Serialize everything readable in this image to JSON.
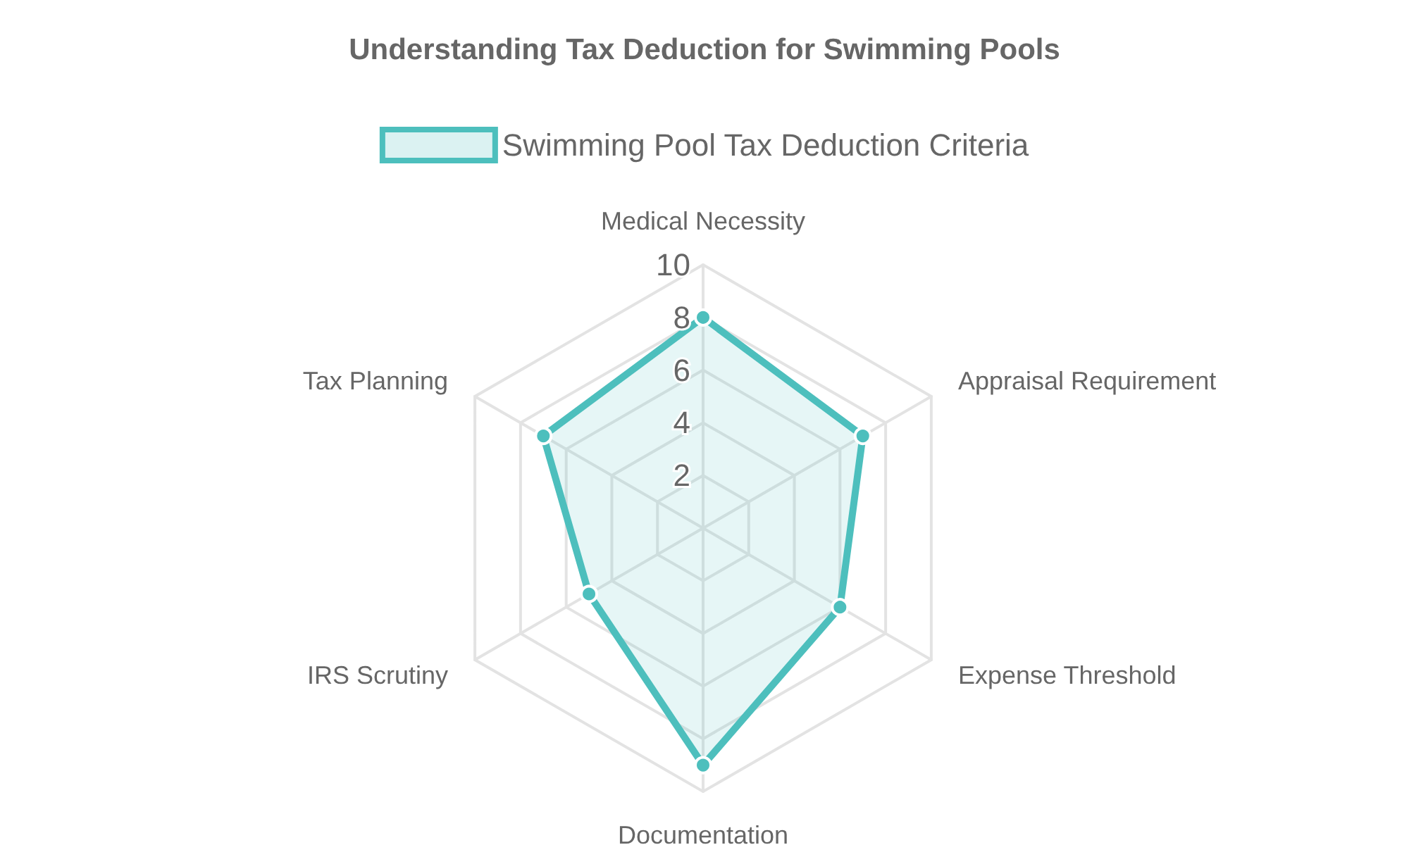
{
  "chart_data": {
    "type": "radar",
    "title": "Understanding Tax Deduction for Swimming Pools",
    "categories": [
      "Medical Necessity",
      "Appraisal Requirement",
      "Expense Threshold",
      "Documentation",
      "IRS Scrutiny",
      "Tax Planning"
    ],
    "series": [
      {
        "name": "Swimming Pool Tax Deduction Criteria",
        "color": "#4dbfbd",
        "values": [
          8,
          7,
          6,
          9,
          5,
          7
        ]
      }
    ],
    "ylim": [
      0,
      10
    ],
    "yticks": [
      2,
      4,
      6,
      8,
      10
    ],
    "legend": "top",
    "marker": "circle",
    "grid": true
  }
}
